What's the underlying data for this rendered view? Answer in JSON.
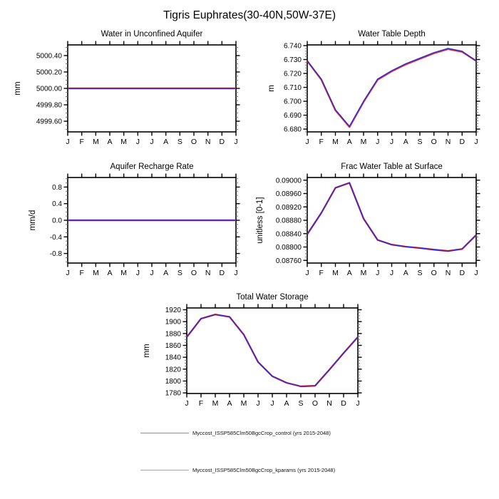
{
  "colors": {
    "control_line": "#2a2ad8",
    "kparams_line": "#e03030",
    "axis": "#000000",
    "minor_tick": "#777777"
  },
  "legend": {
    "items": [
      {
        "label": "Myccost_ISSP585Clm50BgcCrop_control (yrs 2015-2048)",
        "color": "#8080ff"
      },
      {
        "label": "Myccost_ISSP585Clm50BgcCrop_kparams (yrs 2015-2048)",
        "color": "#ff8080"
      }
    ]
  },
  "chart_data": {
    "type": "line",
    "title": "Tigris Euphrates(30-40N,50W-37E)",
    "categories": [
      "J",
      "F",
      "M",
      "A",
      "M",
      "J",
      "J",
      "A",
      "S",
      "O",
      "N",
      "D",
      "J"
    ],
    "legend_position": "bottom",
    "grid": false,
    "panels": [
      {
        "key": "water-in-unconfined-aquifer",
        "title": "Water in Unconfined Aquifer",
        "ylabel": "mm",
        "ylim": [
          4999.47,
          5000.53
        ],
        "yticks": [
          4999.6,
          4999.8,
          5000.0,
          5000.2,
          5000.4
        ],
        "ytick_labels": [
          "4999.60",
          "4999.80",
          "5000.00",
          "5000.20",
          "5000.40"
        ],
        "minor_step": 0.05,
        "series": [
          {
            "name": "control",
            "values": [
              5000.0,
              5000.0,
              5000.0,
              5000.0,
              5000.0,
              5000.0,
              5000.0,
              5000.0,
              5000.0,
              5000.0,
              5000.0,
              5000.0,
              5000.0
            ]
          },
          {
            "name": "kparams",
            "values": [
              5000.0,
              5000.0,
              5000.0,
              5000.0,
              5000.0,
              5000.0,
              5000.0,
              5000.0,
              5000.0,
              5000.0,
              5000.0,
              5000.0,
              5000.0
            ]
          }
        ]
      },
      {
        "key": "water-table-depth",
        "title": "Water Table Depth",
        "ylabel": "m",
        "ylim": [
          6.678,
          6.7405
        ],
        "yticks": [
          6.68,
          6.69,
          6.7,
          6.71,
          6.72,
          6.73,
          6.74
        ],
        "ytick_labels": [
          "6.680",
          "6.690",
          "6.700",
          "6.710",
          "6.720",
          "6.730",
          "6.740"
        ],
        "minor_step": 0.002,
        "series": [
          {
            "name": "control",
            "values": [
              6.729,
              6.716,
              6.694,
              6.682,
              6.7,
              6.716,
              6.722,
              6.727,
              6.731,
              6.735,
              6.738,
              6.736,
              6.729
            ]
          },
          {
            "name": "kparams",
            "values": [
              6.729,
              6.7155,
              6.6935,
              6.6815,
              6.6995,
              6.7155,
              6.7215,
              6.7265,
              6.7305,
              6.7345,
              6.7375,
              6.7355,
              6.729
            ]
          }
        ]
      },
      {
        "key": "aquifer-recharge-rate",
        "title": "Aquifer Recharge Rate",
        "ylabel": "mm/d",
        "ylim": [
          -1.03,
          1.03
        ],
        "yticks": [
          -0.8,
          -0.4,
          0.0,
          0.4,
          0.8
        ],
        "ytick_labels": [
          "-0.8",
          "-0.4",
          "0.0",
          "0.4",
          "0.8"
        ],
        "minor_step": 0.1,
        "series": [
          {
            "name": "control",
            "values": [
              0.0,
              0.0,
              0.0,
              0.0,
              0.0,
              0.0,
              0.0,
              0.0,
              0.0,
              0.0,
              0.0,
              0.0,
              0.0
            ]
          },
          {
            "name": "kparams",
            "values": [
              0.0,
              0.0,
              0.0,
              0.0,
              0.0,
              0.0,
              0.0,
              0.0,
              0.0,
              0.0,
              0.0,
              0.0,
              0.0
            ]
          }
        ]
      },
      {
        "key": "frac-water-table-at-surface",
        "title": "Frac Water Table at Surface",
        "ylabel": "unitless [0-1]",
        "ylim": [
          0.08752,
          0.09008
        ],
        "yticks": [
          0.0876,
          0.088,
          0.0884,
          0.0888,
          0.0892,
          0.0896,
          0.09
        ],
        "ytick_labels": [
          "0.08760",
          "0.08800",
          "0.08840",
          "0.08880",
          "0.08920",
          "0.08960",
          "0.09000"
        ],
        "minor_step": 0.0001,
        "series": [
          {
            "name": "control",
            "values": [
              0.08838,
              0.08902,
              0.08977,
              0.08992,
              0.08885,
              0.08821,
              0.08807,
              0.08801,
              0.08797,
              0.08792,
              0.08788,
              0.08794,
              0.08836
            ]
          },
          {
            "name": "kparams",
            "values": [
              0.08838,
              0.08902,
              0.08977,
              0.08992,
              0.08885,
              0.08821,
              0.08807,
              0.08801,
              0.08797,
              0.08792,
              0.08788,
              0.08794,
              0.08836
            ]
          }
        ]
      },
      {
        "key": "total-water-storage",
        "title": "Total Water Storage",
        "ylabel": "mm",
        "ylim": [
          1779,
          1923
        ],
        "yticks": [
          1780,
          1800,
          1820,
          1840,
          1860,
          1880,
          1900,
          1920
        ],
        "ytick_labels": [
          "1780",
          "1800",
          "1820",
          "1840",
          "1860",
          "1880",
          "1900",
          "1920"
        ],
        "minor_step": 5,
        "series": [
          {
            "name": "control",
            "values": [
              1874,
              1905,
              1912,
              1908,
              1878,
              1832,
              1808,
              1797,
              1791,
              1792,
              1819,
              1847,
              1874
            ]
          },
          {
            "name": "kparams",
            "values": [
              1874,
              1905,
              1912,
              1908,
              1878,
              1832,
              1808,
              1797,
              1791,
              1792,
              1819,
              1847,
              1874
            ]
          }
        ]
      }
    ]
  }
}
